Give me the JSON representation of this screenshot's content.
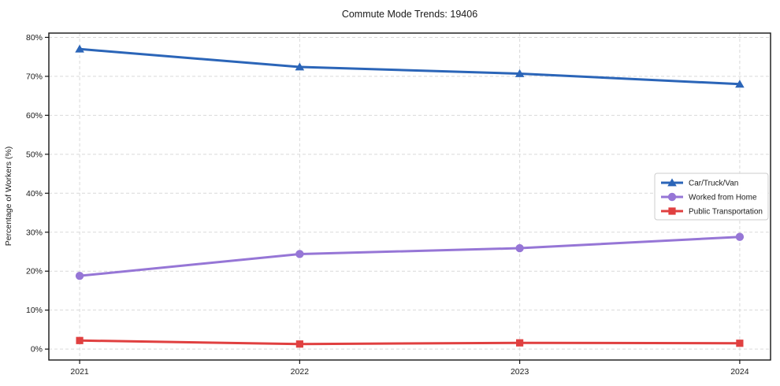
{
  "page": {
    "title": "Commute Mode Trends: 19406"
  },
  "chart_data": {
    "type": "line",
    "title": "Commute Mode Trends: 19406",
    "xlabel": "",
    "ylabel": "Percentage of Workers (%)",
    "x": [
      2021,
      2022,
      2023,
      2024
    ],
    "series": [
      {
        "name": "Car/Truck/Van",
        "values": [
          77.0,
          72.4,
          70.7,
          68.0
        ],
        "color": "#2b65b8",
        "marker": "triangle"
      },
      {
        "name": "Worked from Home",
        "values": [
          18.8,
          24.4,
          25.9,
          28.8
        ],
        "color": "#9676d6",
        "marker": "circle"
      },
      {
        "name": "Public Transportation",
        "values": [
          2.2,
          1.3,
          1.6,
          1.5
        ],
        "color": "#e04040",
        "marker": "square"
      }
    ],
    "yticks": [
      0,
      10,
      20,
      30,
      40,
      50,
      60,
      70,
      80
    ],
    "ytick_suffix": "%",
    "xlim": [
      2020.86,
      2024.14
    ],
    "ylim": [
      -2.8,
      81.1
    ],
    "grid": true,
    "grid_style": "dashed",
    "grid_color": "#d9d9d9",
    "spine_color": "#141414",
    "legend_position": "center-right",
    "legend_entries": [
      "Car/Truck/Van",
      "Worked from Home",
      "Public Transportation"
    ]
  }
}
